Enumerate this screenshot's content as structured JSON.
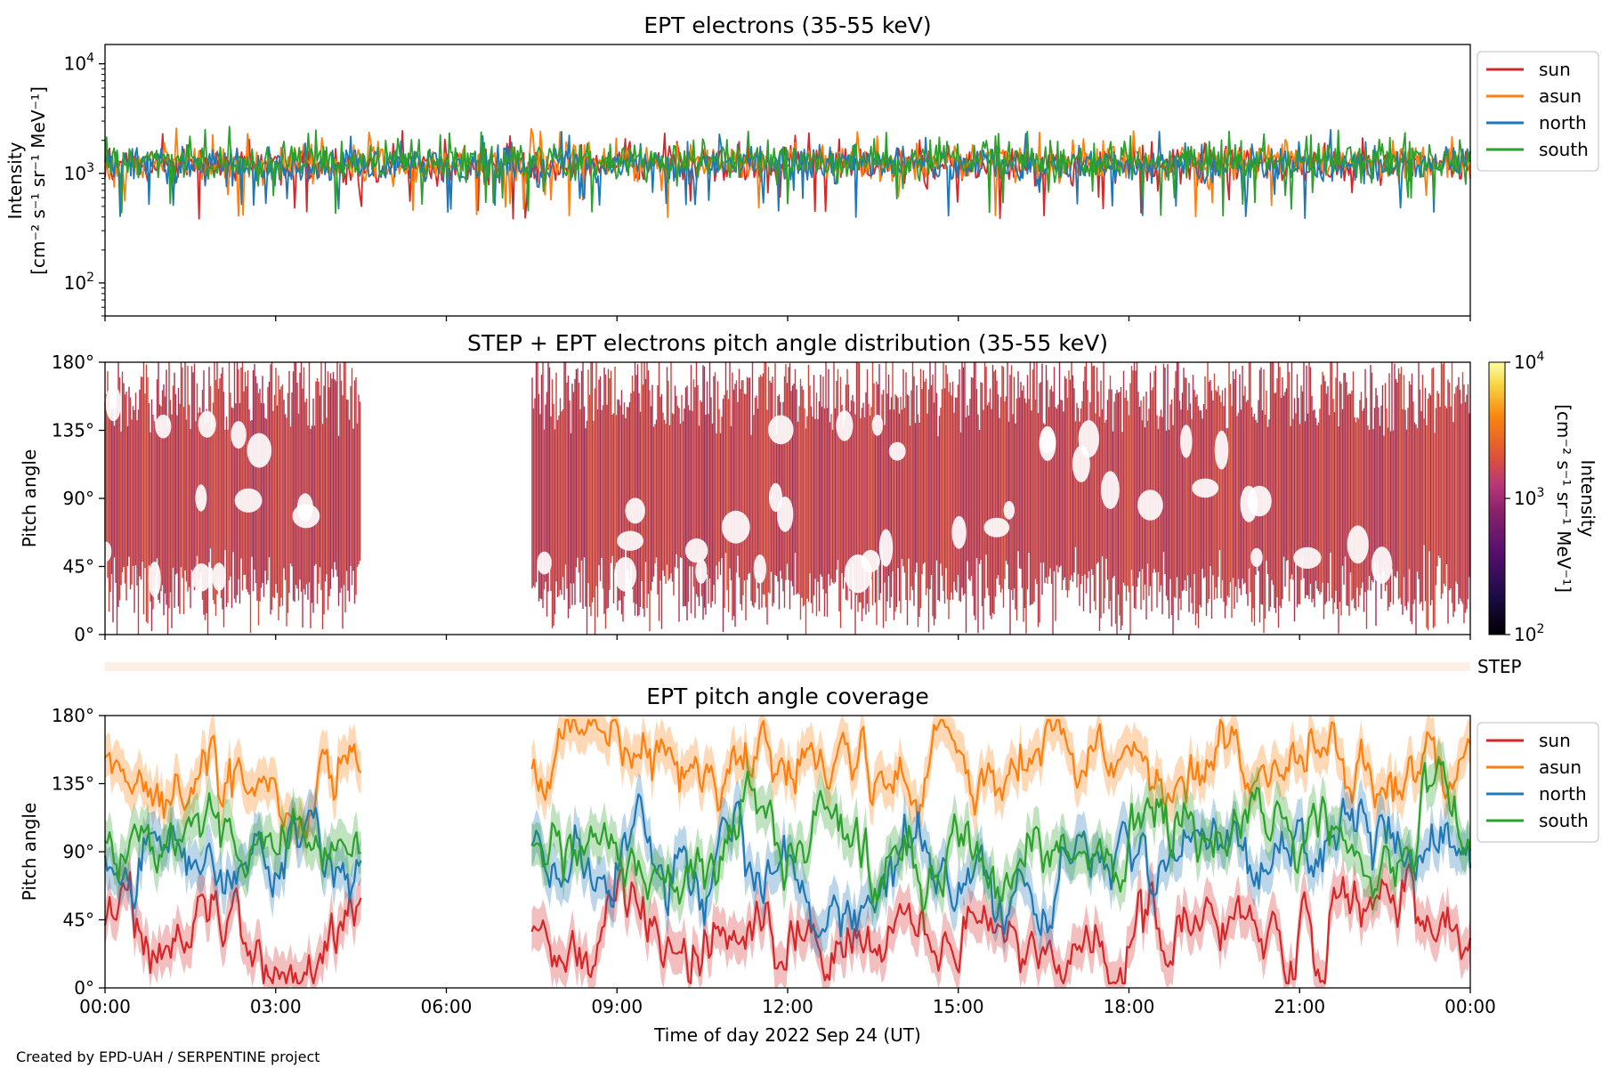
{
  "figure": {
    "footer": "Created by EPD-UAH / SERPENTINE project",
    "xlabel": "Time of day 2022 Sep 24 (UT)",
    "x_tick_labels": [
      "00:00",
      "03:00",
      "06:00",
      "09:00",
      "12:00",
      "15:00",
      "18:00",
      "21:00",
      "00:00"
    ],
    "step_strip_label": "STEP"
  },
  "colors": {
    "sun": "#d62728",
    "asun": "#ff7f0e",
    "north": "#1f77b4",
    "south": "#2ca02c",
    "pad_fill": "#c23a41",
    "step_strip": "#fdeee6"
  },
  "chart_data": [
    {
      "type": "line",
      "title": "EPT electrons (35-55 keV)",
      "ylabel_line1": "Intensity",
      "ylabel_line2": "[cm⁻² s⁻¹ sr⁻¹ MeV⁻¹]",
      "yscale": "log",
      "ylim": [
        50,
        15000
      ],
      "y_ticks": [
        {
          "base": "10",
          "exp": "2",
          "value": 100
        },
        {
          "base": "10",
          "exp": "3",
          "value": 1000
        },
        {
          "base": "10",
          "exp": "4",
          "value": 10000
        }
      ],
      "xlim_hours": [
        0,
        24
      ],
      "legend": [
        "sun",
        "asun",
        "north",
        "south"
      ],
      "legend_position": "right, outside, top",
      "typical_value": 1200,
      "range_min": 300,
      "range_max": 2500,
      "series": [
        {
          "name": "sun",
          "level": 1200
        },
        {
          "name": "asun",
          "level": 1250
        },
        {
          "name": "north",
          "level": 1200
        },
        {
          "name": "south",
          "level": 1300
        }
      ]
    },
    {
      "type": "heatmap",
      "title": "STEP + EPT electrons pitch angle distribution (35-55 keV)",
      "ylabel": "Pitch angle",
      "ylim": [
        0,
        180
      ],
      "y_tick_labels": [
        "0°",
        "45°",
        "90°",
        "135°",
        "180°"
      ],
      "data_gap_hours": [
        4.5,
        7.5
      ],
      "typical_intensity": 1000,
      "colorbar": {
        "label_line1": "Intensity",
        "label_line2": "[cm⁻² s⁻¹ sr⁻¹ MeV⁻¹]",
        "scale": "log",
        "range": [
          100,
          10000
        ],
        "ticks": [
          {
            "base": "10",
            "exp": "2"
          },
          {
            "base": "10",
            "exp": "3"
          },
          {
            "base": "10",
            "exp": "4"
          }
        ]
      }
    },
    {
      "type": "line",
      "title": "EPT pitch angle coverage",
      "ylabel": "Pitch angle",
      "ylim": [
        0,
        180
      ],
      "y_tick_labels": [
        "0°",
        "45°",
        "90°",
        "135°",
        "180°"
      ],
      "xlim_hours": [
        0,
        24
      ],
      "data_gap_hours": [
        4.5,
        7.5
      ],
      "legend": [
        "sun",
        "asun",
        "north",
        "south"
      ],
      "legend_position": "right, outside, top",
      "series": [
        {
          "name": "sun",
          "typical_pitch_angle": 35
        },
        {
          "name": "asun",
          "typical_pitch_angle": 145
        },
        {
          "name": "north",
          "typical_pitch_angle": 80
        },
        {
          "name": "south",
          "typical_pitch_angle": 100
        }
      ]
    }
  ]
}
